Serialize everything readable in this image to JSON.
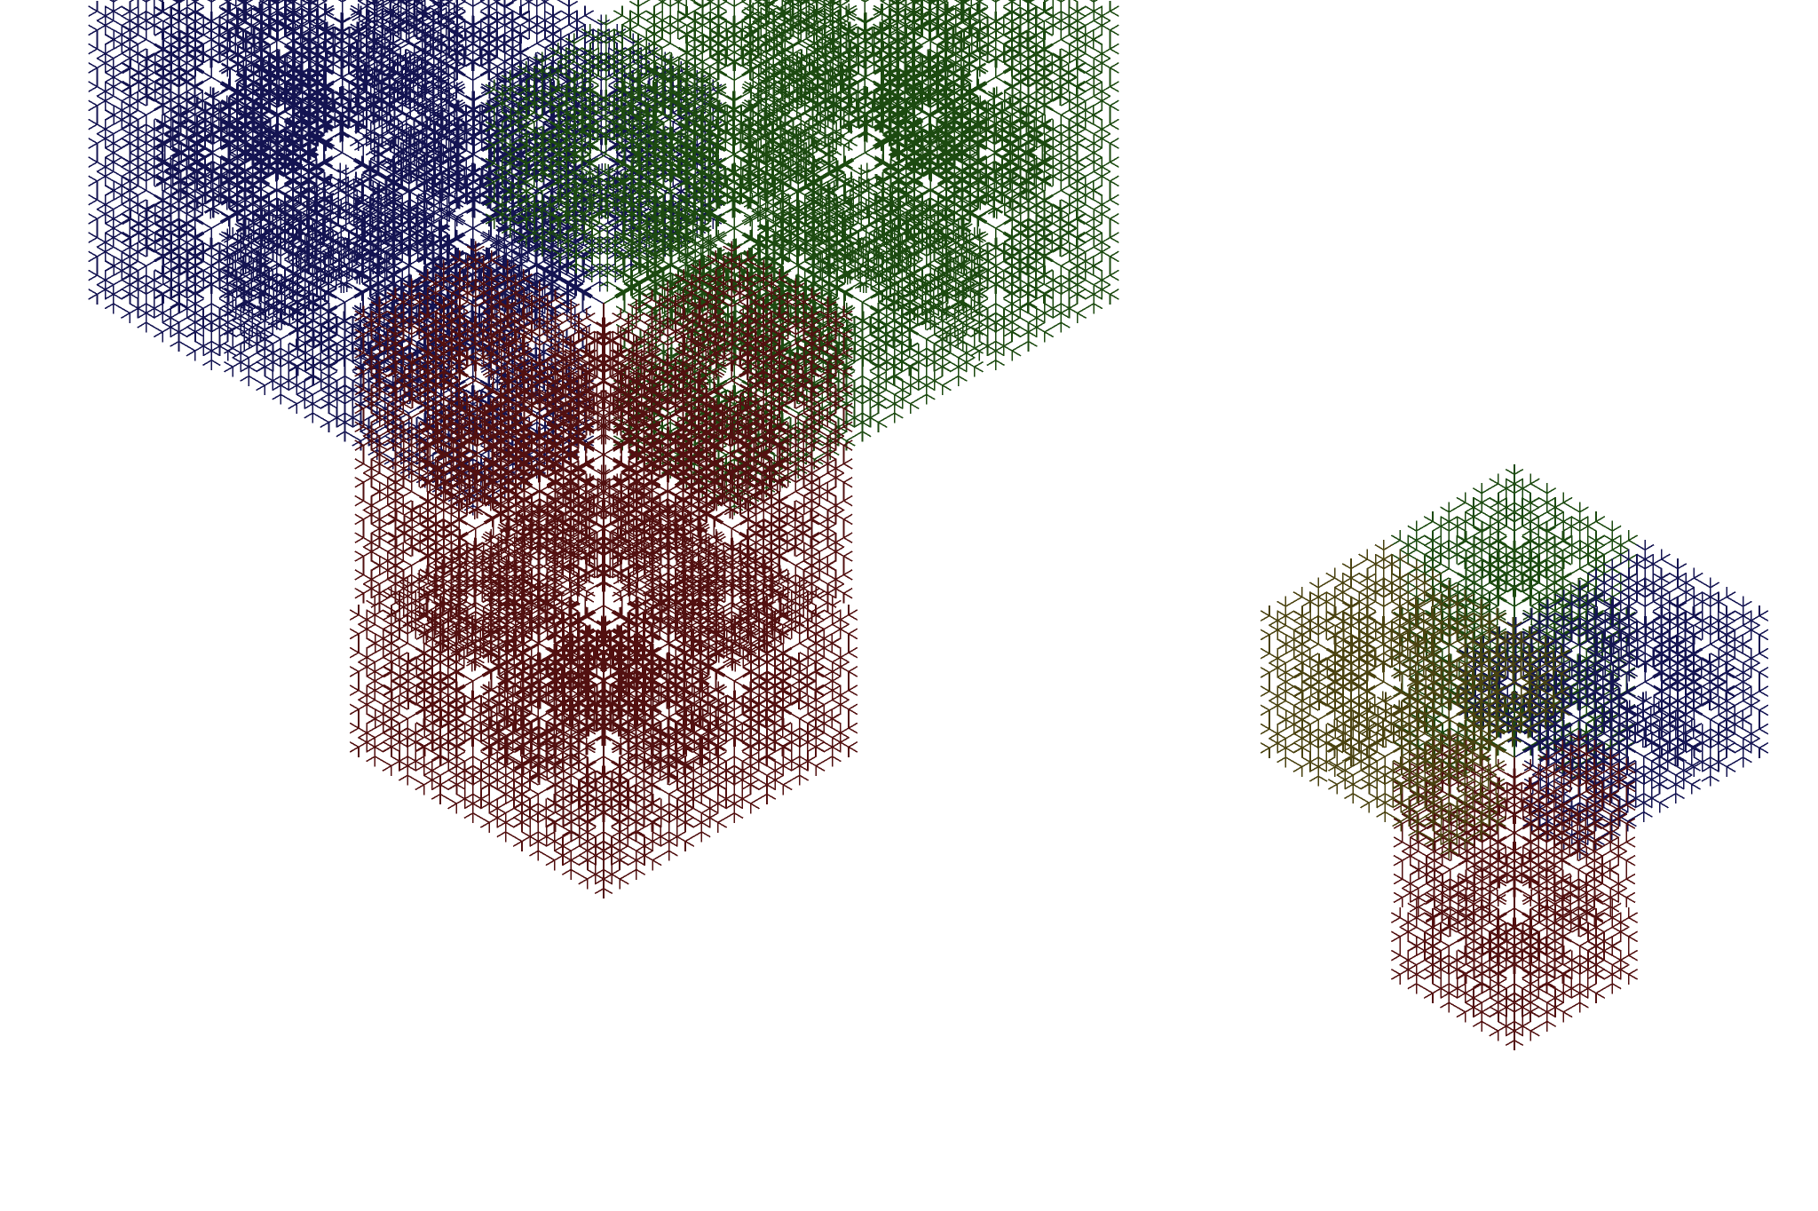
{
  "background_color": "#ffffff",
  "palette": {
    "navy": "#141452",
    "green": "#1c4a10",
    "maroon": "#521010",
    "olive": "#4a4210"
  },
  "figures": [
    {
      "name": "large-fractal",
      "depth": 5,
      "segments": [
        {
          "name": "navy-arm",
          "color": "navy"
        },
        {
          "name": "green-arm",
          "color": "green"
        },
        {
          "name": "maroon-arm",
          "color": "maroon"
        }
      ]
    },
    {
      "name": "small-fractal",
      "depth": 4,
      "segments": [
        {
          "name": "green-arm",
          "color": "green"
        },
        {
          "name": "navy-arm",
          "color": "navy"
        },
        {
          "name": "maroon-arm",
          "color": "maroon"
        },
        {
          "name": "olive-arm",
          "color": "olive"
        }
      ]
    }
  ]
}
